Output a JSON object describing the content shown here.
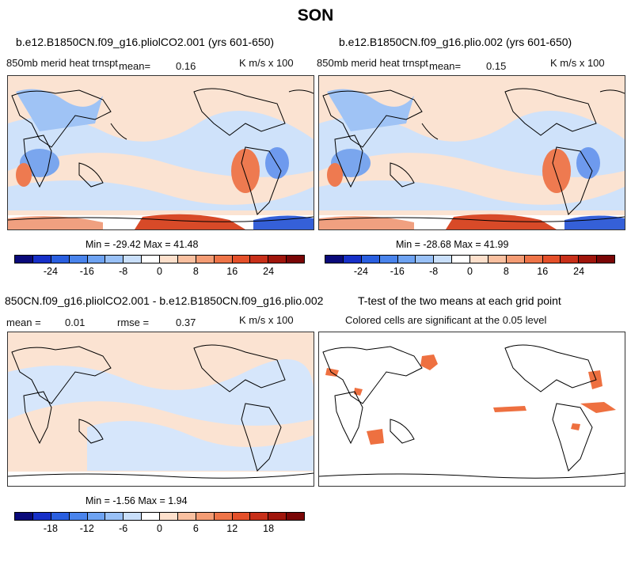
{
  "page": {
    "title": "SON"
  },
  "panels": [
    {
      "title": "b.e12.B1850CN.f09_g16.pliolCO2.001 (yrs 601-650)",
      "variable": "850mb merid heat trnspt",
      "mean_label": "mean=",
      "mean_value": "0.16",
      "units": "K m/s x 100",
      "min_max": "Min = -29.42 Max = 41.48"
    },
    {
      "title": "b.e12.B1850CN.f09_g16.plio.002 (yrs 601-650)",
      "variable": "850mb merid heat trnspt",
      "mean_label": "mean=",
      "mean_value": "0.15",
      "units": "K m/s x 100",
      "min_max": "Min = -28.68 Max = 41.99"
    },
    {
      "title": "850CN.f09_g16.pliolCO2.001 - b.e12.B1850CN.f09_g16.plio.002",
      "mean_label": "mean =",
      "mean_value": "0.01",
      "rmse_label": "rmse =",
      "rmse_value": "0.37",
      "units": "K m/s x 100",
      "min_max": "Min = -1.56 Max = 1.94"
    },
    {
      "title": "T-test of the two means at each grid point",
      "note": "Colored cells are significant at the 0.05 level"
    }
  ],
  "colorbar_top": {
    "colors": [
      "#0a0a7a",
      "#1730c8",
      "#2a5fe0",
      "#4a84ec",
      "#6ea3f2",
      "#99c1f7",
      "#c9dffa",
      "#ffffff",
      "#fde0cc",
      "#f9c0a0",
      "#f49c74",
      "#ee7448",
      "#e4502a",
      "#c8301a",
      "#a0160c",
      "#7a0606"
    ],
    "ticks": [
      "-24",
      "-16",
      "-8",
      "0",
      "8",
      "16",
      "24"
    ]
  },
  "colorbar_bottom": {
    "colors": [
      "#0a0a7a",
      "#1730c8",
      "#2a5fe0",
      "#4a84ec",
      "#6ea3f2",
      "#99c1f7",
      "#c9dffa",
      "#ffffff",
      "#fde0cc",
      "#f9c0a0",
      "#f49c74",
      "#ee7448",
      "#e4502a",
      "#c8301a",
      "#a0160c",
      "#7a0606"
    ],
    "ticks": [
      "-18",
      "-12",
      "-6",
      "0",
      "6",
      "12",
      "18"
    ]
  }
}
